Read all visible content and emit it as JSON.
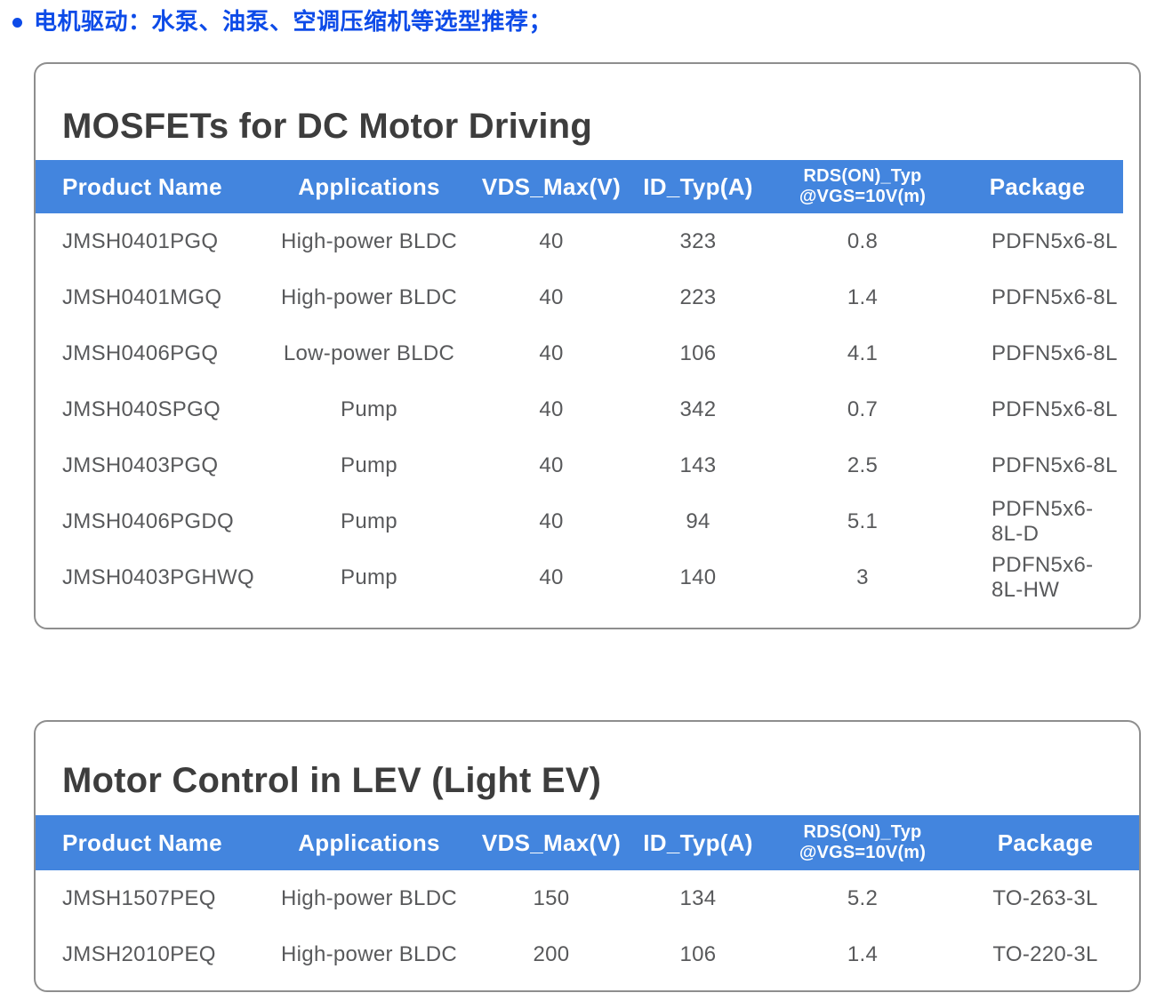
{
  "bullet": {
    "text": "电机驱动：水泵、油泵、空调压缩机等选型推荐；"
  },
  "colors": {
    "bullet_blue": "#0d4be8",
    "header_band_blue": "#4385de",
    "title_gray": "#3d3d3d",
    "body_text_gray": "#58595b",
    "card_border_gray": "#8e8e8e"
  },
  "tables": [
    {
      "title": "MOSFETs for DC Motor Driving",
      "columns": [
        "Product Name",
        "Applications",
        "VDS_Max(V)",
        "ID_Typ(A)",
        {
          "lines": [
            "RDS(ON)_Typ",
            "@VGS=10V(m)"
          ]
        },
        "Package"
      ],
      "rows": [
        [
          "JMSH0401PGQ",
          "High-power BLDC",
          "40",
          "323",
          "0.8",
          "PDFN5x6-8L"
        ],
        [
          "JMSH0401MGQ",
          "High-power BLDC",
          "40",
          "223",
          "1.4",
          "PDFN5x6-8L"
        ],
        [
          "JMSH0406PGQ",
          "Low-power BLDC",
          "40",
          "106",
          "4.1",
          "PDFN5x6-8L"
        ],
        [
          "JMSH040SPGQ",
          "Pump",
          "40",
          "342",
          "0.7",
          "PDFN5x6-8L"
        ],
        [
          "JMSH0403PGQ",
          "Pump",
          "40",
          "143",
          "2.5",
          "PDFN5x6-8L"
        ],
        [
          "JMSH0406PGDQ",
          "Pump",
          "40",
          "94",
          "5.1",
          "PDFN5x6-8L-D"
        ],
        [
          "JMSH0403PGHWQ",
          "Pump",
          "40",
          "140",
          "3",
          "PDFN5x6-8L-HW"
        ]
      ]
    },
    {
      "title": "Motor Control in LEV (Light EV)",
      "columns": [
        "Product Name",
        "Applications",
        "VDS_Max(V)",
        "ID_Typ(A)",
        {
          "lines": [
            "RDS(ON)_Typ",
            "@VGS=10V(m)"
          ]
        },
        "Package"
      ],
      "rows": [
        [
          "JMSH1507PEQ",
          "High-power BLDC",
          "150",
          "134",
          "5.2",
          "TO-263-3L"
        ],
        [
          "JMSH2010PEQ",
          "High-power BLDC",
          "200",
          "106",
          "1.4",
          "TO-220-3L"
        ]
      ]
    }
  ]
}
